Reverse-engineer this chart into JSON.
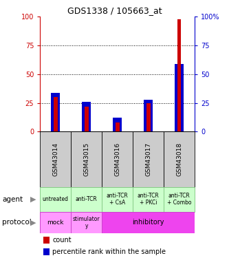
{
  "title": "GDS1338 / 105663_at",
  "samples": [
    "GSM43014",
    "GSM43015",
    "GSM43016",
    "GSM43017",
    "GSM43018"
  ],
  "count_values": [
    30,
    22,
    8,
    25,
    98
  ],
  "percentile_values": [
    34,
    26,
    12,
    28,
    59
  ],
  "yticks": [
    0,
    25,
    50,
    75,
    100
  ],
  "bar_color_red": "#cc0000",
  "bar_color_blue": "#0000cc",
  "agent_labels": [
    "untreated",
    "anti-TCR",
    "anti-TCR\n+ CsA",
    "anti-TCR\n+ PKCi",
    "anti-TCR\n+ Combo"
  ],
  "agent_color": "#ccffcc",
  "agent_border": "#88cc88",
  "protocol_color_light": "#ff99ff",
  "protocol_color_bright": "#ee44ee",
  "sample_box_color": "#cccccc",
  "legend_count_color": "#cc0000",
  "legend_pct_color": "#0000cc",
  "left_tick_color": "#cc0000",
  "right_tick_color": "#0000cc",
  "right_tick_labels": [
    "0",
    "25",
    "50",
    "75",
    "100%"
  ]
}
